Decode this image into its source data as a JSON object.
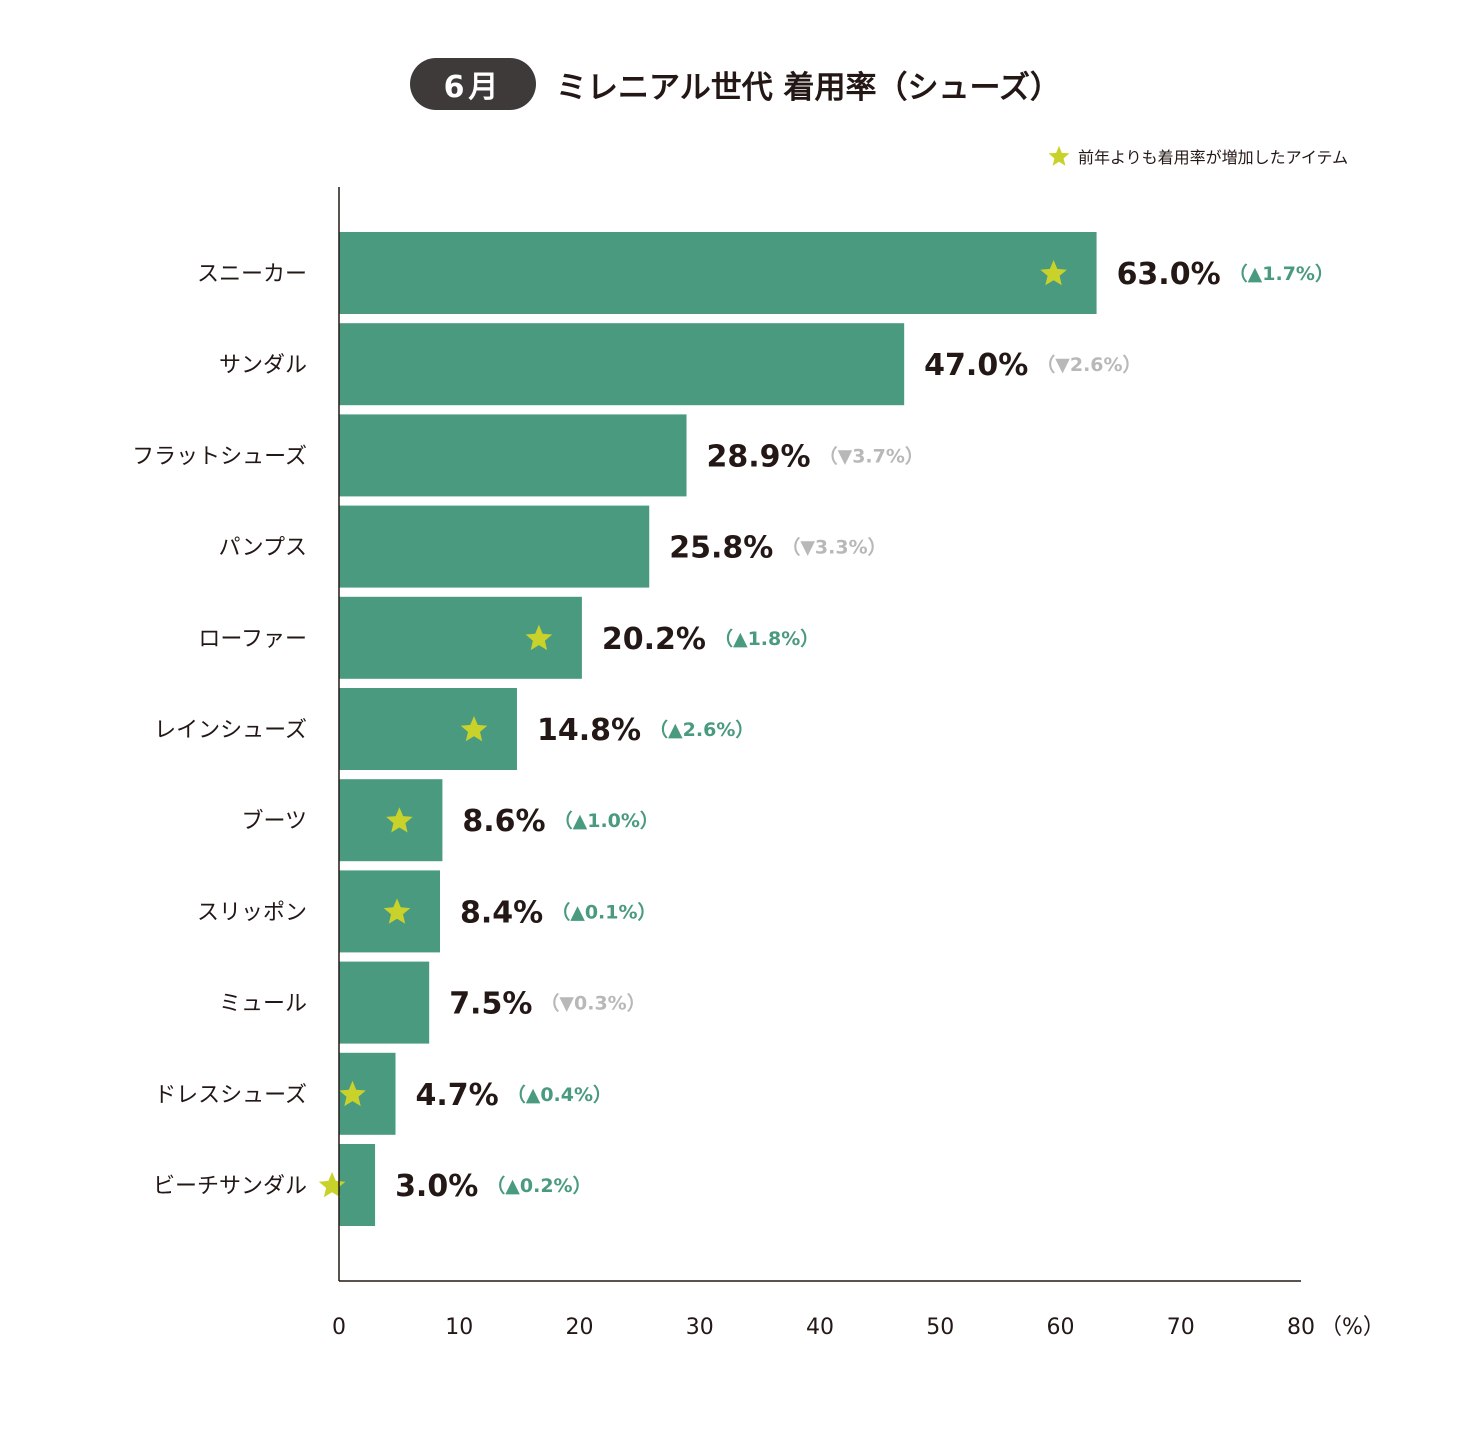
{
  "header": {
    "month": "6月",
    "title": "ミレニアル世代 着用率（シューズ）"
  },
  "legend": {
    "text": "前年よりも着用率が増加したアイテム",
    "star_color": "#c8d22a"
  },
  "colors": {
    "bar": "#4a9a80",
    "up": "#4a9a80",
    "down": "#b8b8b8",
    "star": "#c8d22a"
  },
  "chart_data": {
    "type": "bar",
    "orientation": "horizontal",
    "categories": [
      "スニーカー",
      "サンダル",
      "フラットシューズ",
      "パンプス",
      "ローファー",
      "レインシューズ",
      "ブーツ",
      "スリッポン",
      "ミュール",
      "ドレスシューズ",
      "ビーチサンダル"
    ],
    "values": [
      63.0,
      47.0,
      28.9,
      25.8,
      20.2,
      14.8,
      8.6,
      8.4,
      7.5,
      4.7,
      3.0
    ],
    "value_labels": [
      "63.0%",
      "47.0%",
      "28.9%",
      "25.8%",
      "20.2%",
      "14.8%",
      "8.6%",
      "8.4%",
      "7.5%",
      "4.7%",
      "3.0%"
    ],
    "change_labels": [
      "（▲1.7%）",
      "（▼2.6%）",
      "（▼3.7%）",
      "（▼3.3%）",
      "（▲1.8%）",
      "（▲2.6%）",
      "（▲1.0%）",
      "（▲0.1%）",
      "（▼0.3%）",
      "（▲0.4%）",
      "（▲0.2%）"
    ],
    "change_values": [
      1.7,
      -2.6,
      -3.7,
      -3.3,
      1.8,
      2.6,
      1.0,
      0.1,
      -0.3,
      0.4,
      0.2
    ],
    "increased": [
      true,
      false,
      false,
      false,
      true,
      true,
      true,
      true,
      false,
      true,
      true
    ],
    "xlim": [
      0,
      80
    ],
    "x_ticks": [
      "0",
      "10",
      "20",
      "30",
      "40",
      "50",
      "60",
      "70",
      "80"
    ],
    "x_unit": "（%）",
    "grid": false
  }
}
